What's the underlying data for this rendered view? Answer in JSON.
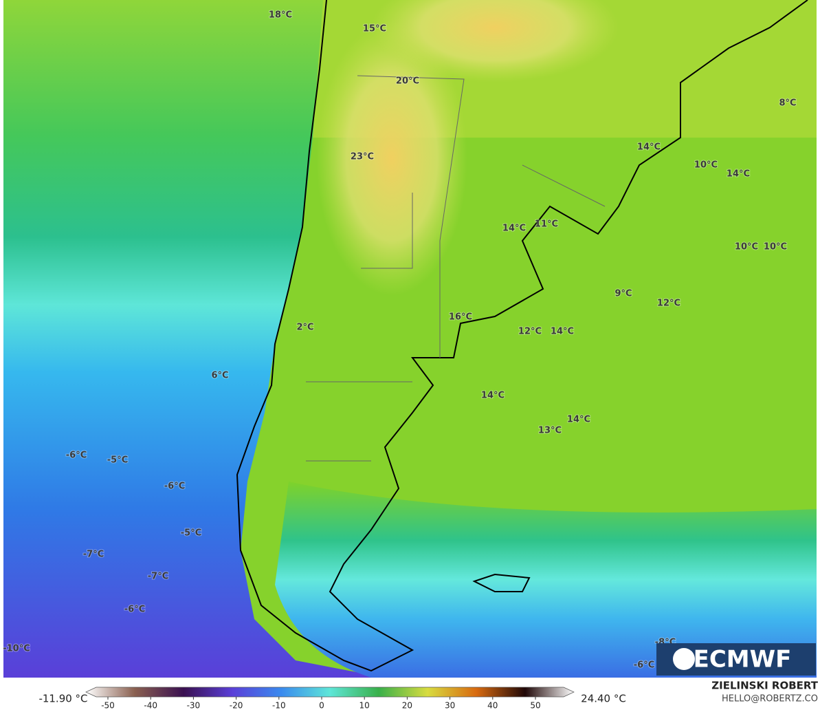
{
  "map": {
    "temperature_labels": [
      "18°C",
      "15°C",
      "20°C",
      "8°C",
      "14°C",
      "23°C",
      "10°C",
      "14°C",
      "14°C",
      "11°C",
      "10°C",
      "10°C",
      "9°C",
      "12°C",
      "16°C",
      "2°C",
      "12°C",
      "14°C",
      "6°C",
      "14°C",
      "14°C",
      "13°C",
      "-6°C",
      "-5°C",
      "-6°C",
      "-5°C",
      "-7°C",
      "-7°C",
      "-6°C",
      "-8°C",
      "-10°C",
      "-6°C"
    ],
    "logo": "ECMWF"
  },
  "colorbar": {
    "min_label": "-11.90 °C",
    "max_label": "24.40 °C",
    "ticks": [
      -50,
      -40,
      -30,
      -20,
      -10,
      0,
      10,
      20,
      30,
      40,
      50
    ]
  },
  "credits": {
    "author": "ZIELINSKI ROBERT",
    "contact": "HELLO@ROBERTZ.CO"
  }
}
